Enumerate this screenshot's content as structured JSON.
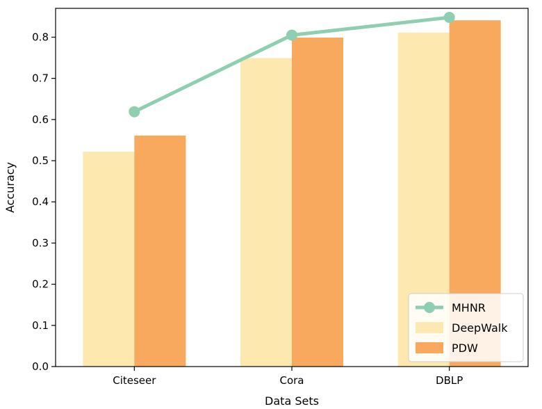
{
  "chart_data": {
    "type": "bar",
    "categories": [
      "Citeseer",
      "Cora",
      "DBLP"
    ],
    "series": [
      {
        "name": "DeepWalk",
        "kind": "bar",
        "color": "#fde9b0",
        "values": [
          0.522,
          0.749,
          0.811
        ]
      },
      {
        "name": "PDW",
        "kind": "bar",
        "color": "#f9a95e",
        "values": [
          0.561,
          0.799,
          0.841
        ]
      },
      {
        "name": "MHNR",
        "kind": "line",
        "color": "#8dcfb0",
        "marker": "circle",
        "values": [
          0.619,
          0.805,
          0.848
        ]
      }
    ],
    "xlabel": "Data Sets",
    "ylabel": "Accuracy",
    "ylim": [
      0,
      0.87
    ],
    "yticks": [
      "0.0",
      "0.1",
      "0.2",
      "0.3",
      "0.4",
      "0.5",
      "0.6",
      "0.7",
      "0.8"
    ],
    "legend": {
      "placement": "lower-right",
      "order": [
        "MHNR",
        "DeepWalk",
        "PDW"
      ]
    },
    "grid": false
  }
}
